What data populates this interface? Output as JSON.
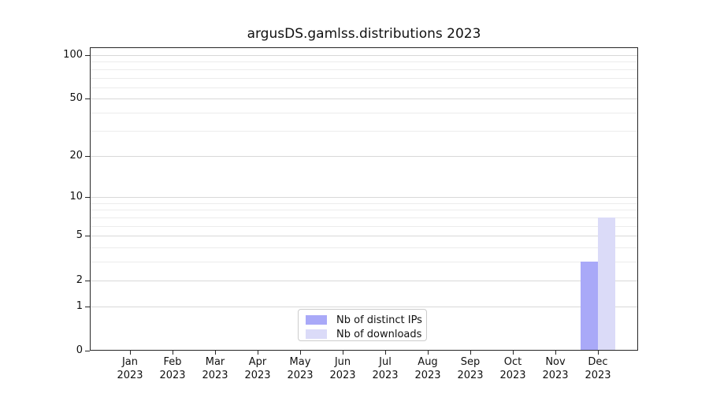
{
  "title": "argusDS.gamlss.distributions 2023",
  "colors": {
    "distinct_ips": "#a9a9f8",
    "downloads": "#dbdbf8",
    "grid_major": "#d8d8d8",
    "grid_minor": "#ececec",
    "spine": "#262626",
    "text": "#111111",
    "legend_border": "#cccccc"
  },
  "legend": {
    "items": [
      {
        "label": "Nb of distinct IPs",
        "color_key": "distinct_ips"
      },
      {
        "label": "Nb of downloads",
        "color_key": "downloads"
      }
    ]
  },
  "x_axis": {
    "months": [
      "Jan",
      "Feb",
      "Mar",
      "Apr",
      "May",
      "Jun",
      "Jul",
      "Aug",
      "Sep",
      "Oct",
      "Nov",
      "Dec"
    ],
    "year": "2023"
  },
  "y_axis": {
    "major_ticks": [
      0,
      1,
      2,
      5,
      10,
      20,
      50,
      100
    ],
    "minor_gridlines": [
      3,
      4,
      6,
      7,
      8,
      9,
      30,
      40,
      60,
      70,
      80,
      90
    ]
  },
  "chart_data": {
    "type": "bar",
    "title": "argusDS.gamlss.distributions 2023",
    "categories": [
      "Jan 2023",
      "Feb 2023",
      "Mar 2023",
      "Apr 2023",
      "May 2023",
      "Jun 2023",
      "Jul 2023",
      "Aug 2023",
      "Sep 2023",
      "Oct 2023",
      "Nov 2023",
      "Dec 2023"
    ],
    "series": [
      {
        "name": "Nb of distinct IPs",
        "color": "#a9a9f8",
        "values": [
          0,
          0,
          0,
          0,
          0,
          0,
          0,
          0,
          0,
          0,
          0,
          3
        ]
      },
      {
        "name": "Nb of downloads",
        "color": "#dbdbf8",
        "values": [
          0,
          0,
          0,
          0,
          0,
          0,
          0,
          0,
          0,
          0,
          0,
          7
        ]
      }
    ],
    "yscale": "log1p",
    "ylim": [
      0,
      113
    ],
    "y_ticks": [
      0,
      1,
      2,
      5,
      10,
      20,
      50,
      100
    ],
    "xlabel": "",
    "ylabel": "",
    "grid": "horizontal-only",
    "legend_position": "lower center"
  }
}
